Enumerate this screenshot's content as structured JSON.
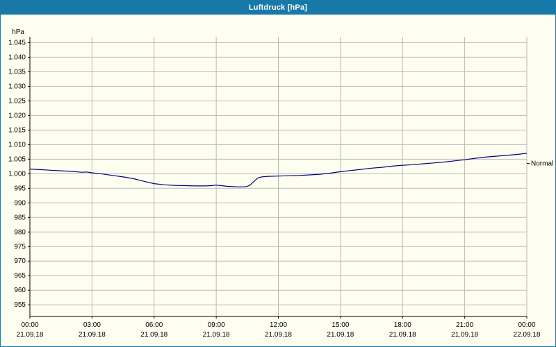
{
  "window": {
    "title": "Luftdruck [hPa]"
  },
  "colors": {
    "titlebar": "#1878a8",
    "background": "#fefef0",
    "grid": "#b8b8b8",
    "axis": "#000000",
    "line": "#000080"
  },
  "chart_data": {
    "type": "line",
    "title": "Luftdruck [hPa]",
    "y_axis_unit_label": "hPa",
    "xlim": [
      0,
      24
    ],
    "ylim": [
      951,
      1047
    ],
    "grid": true,
    "y_ticks": [
      {
        "value": 1045,
        "label": "1.045"
      },
      {
        "value": 1040,
        "label": "1.040"
      },
      {
        "value": 1035,
        "label": "1.035"
      },
      {
        "value": 1030,
        "label": "1.030"
      },
      {
        "value": 1025,
        "label": "1.025"
      },
      {
        "value": 1020,
        "label": "1.020"
      },
      {
        "value": 1015,
        "label": "1.015"
      },
      {
        "value": 1010,
        "label": "1.010"
      },
      {
        "value": 1005,
        "label": "1.005"
      },
      {
        "value": 1000,
        "label": "1.000"
      },
      {
        "value": 995,
        "label": "995"
      },
      {
        "value": 990,
        "label": "990"
      },
      {
        "value": 985,
        "label": "985"
      },
      {
        "value": 980,
        "label": "980"
      },
      {
        "value": 975,
        "label": "975"
      },
      {
        "value": 970,
        "label": "970"
      },
      {
        "value": 965,
        "label": "965"
      },
      {
        "value": 960,
        "label": "960"
      },
      {
        "value": 955,
        "label": "955"
      }
    ],
    "x_ticks": [
      {
        "hour": 0,
        "time": "00:00",
        "date": "21.09.18"
      },
      {
        "hour": 3,
        "time": "03:00",
        "date": "21.09.18"
      },
      {
        "hour": 6,
        "time": "06:00",
        "date": "21.09.18"
      },
      {
        "hour": 9,
        "time": "09:00",
        "date": "21.09.18"
      },
      {
        "hour": 12,
        "time": "12:00",
        "date": "21.09.18"
      },
      {
        "hour": 15,
        "time": "15:00",
        "date": "21.09.18"
      },
      {
        "hour": 18,
        "time": "18:00",
        "date": "21.09.18"
      },
      {
        "hour": 21,
        "time": "21:00",
        "date": "21.09.18"
      },
      {
        "hour": 24,
        "time": "00:00",
        "date": "22.09.18"
      }
    ],
    "series": [
      {
        "name": "Luftdruck",
        "color": "#000080",
        "points": [
          [
            0,
            1001.6
          ],
          [
            0.5,
            1001.4
          ],
          [
            1,
            1001.2
          ],
          [
            1.5,
            1001.0
          ],
          [
            2,
            1000.8
          ],
          [
            2.5,
            1000.5
          ],
          [
            2.75,
            1000.6
          ],
          [
            3,
            1000.3
          ],
          [
            3.5,
            999.9
          ],
          [
            4,
            999.4
          ],
          [
            4.5,
            998.9
          ],
          [
            5,
            998.3
          ],
          [
            5.5,
            997.4
          ],
          [
            6,
            996.6
          ],
          [
            6.5,
            996.2
          ],
          [
            7,
            996.0
          ],
          [
            7.5,
            995.9
          ],
          [
            8,
            995.8
          ],
          [
            8.5,
            995.8
          ],
          [
            8.75,
            995.9
          ],
          [
            9,
            996.1
          ],
          [
            9.25,
            995.9
          ],
          [
            9.5,
            995.7
          ],
          [
            10,
            995.5
          ],
          [
            10.4,
            995.5
          ],
          [
            10.6,
            995.9
          ],
          [
            10.8,
            997.2
          ],
          [
            11,
            998.5
          ],
          [
            11.2,
            998.9
          ],
          [
            11.5,
            999.1
          ],
          [
            12,
            999.2
          ],
          [
            12.5,
            999.3
          ],
          [
            13,
            999.4
          ],
          [
            13.5,
            999.6
          ],
          [
            14,
            999.8
          ],
          [
            14.5,
            1000.2
          ],
          [
            15,
            1000.7
          ],
          [
            15.5,
            1001.1
          ],
          [
            16,
            1001.5
          ],
          [
            16.5,
            1001.9
          ],
          [
            17,
            1002.2
          ],
          [
            17.5,
            1002.6
          ],
          [
            18,
            1002.9
          ],
          [
            18.5,
            1003.1
          ],
          [
            19,
            1003.4
          ],
          [
            19.5,
            1003.7
          ],
          [
            20,
            1004.0
          ],
          [
            20.5,
            1004.4
          ],
          [
            21,
            1004.8
          ],
          [
            21.5,
            1005.3
          ],
          [
            22,
            1005.7
          ],
          [
            22.5,
            1006.0
          ],
          [
            23,
            1006.3
          ],
          [
            23.5,
            1006.6
          ],
          [
            24,
            1007.0
          ]
        ]
      }
    ],
    "annotation": {
      "label": "Normal",
      "value": 1003.5
    }
  }
}
